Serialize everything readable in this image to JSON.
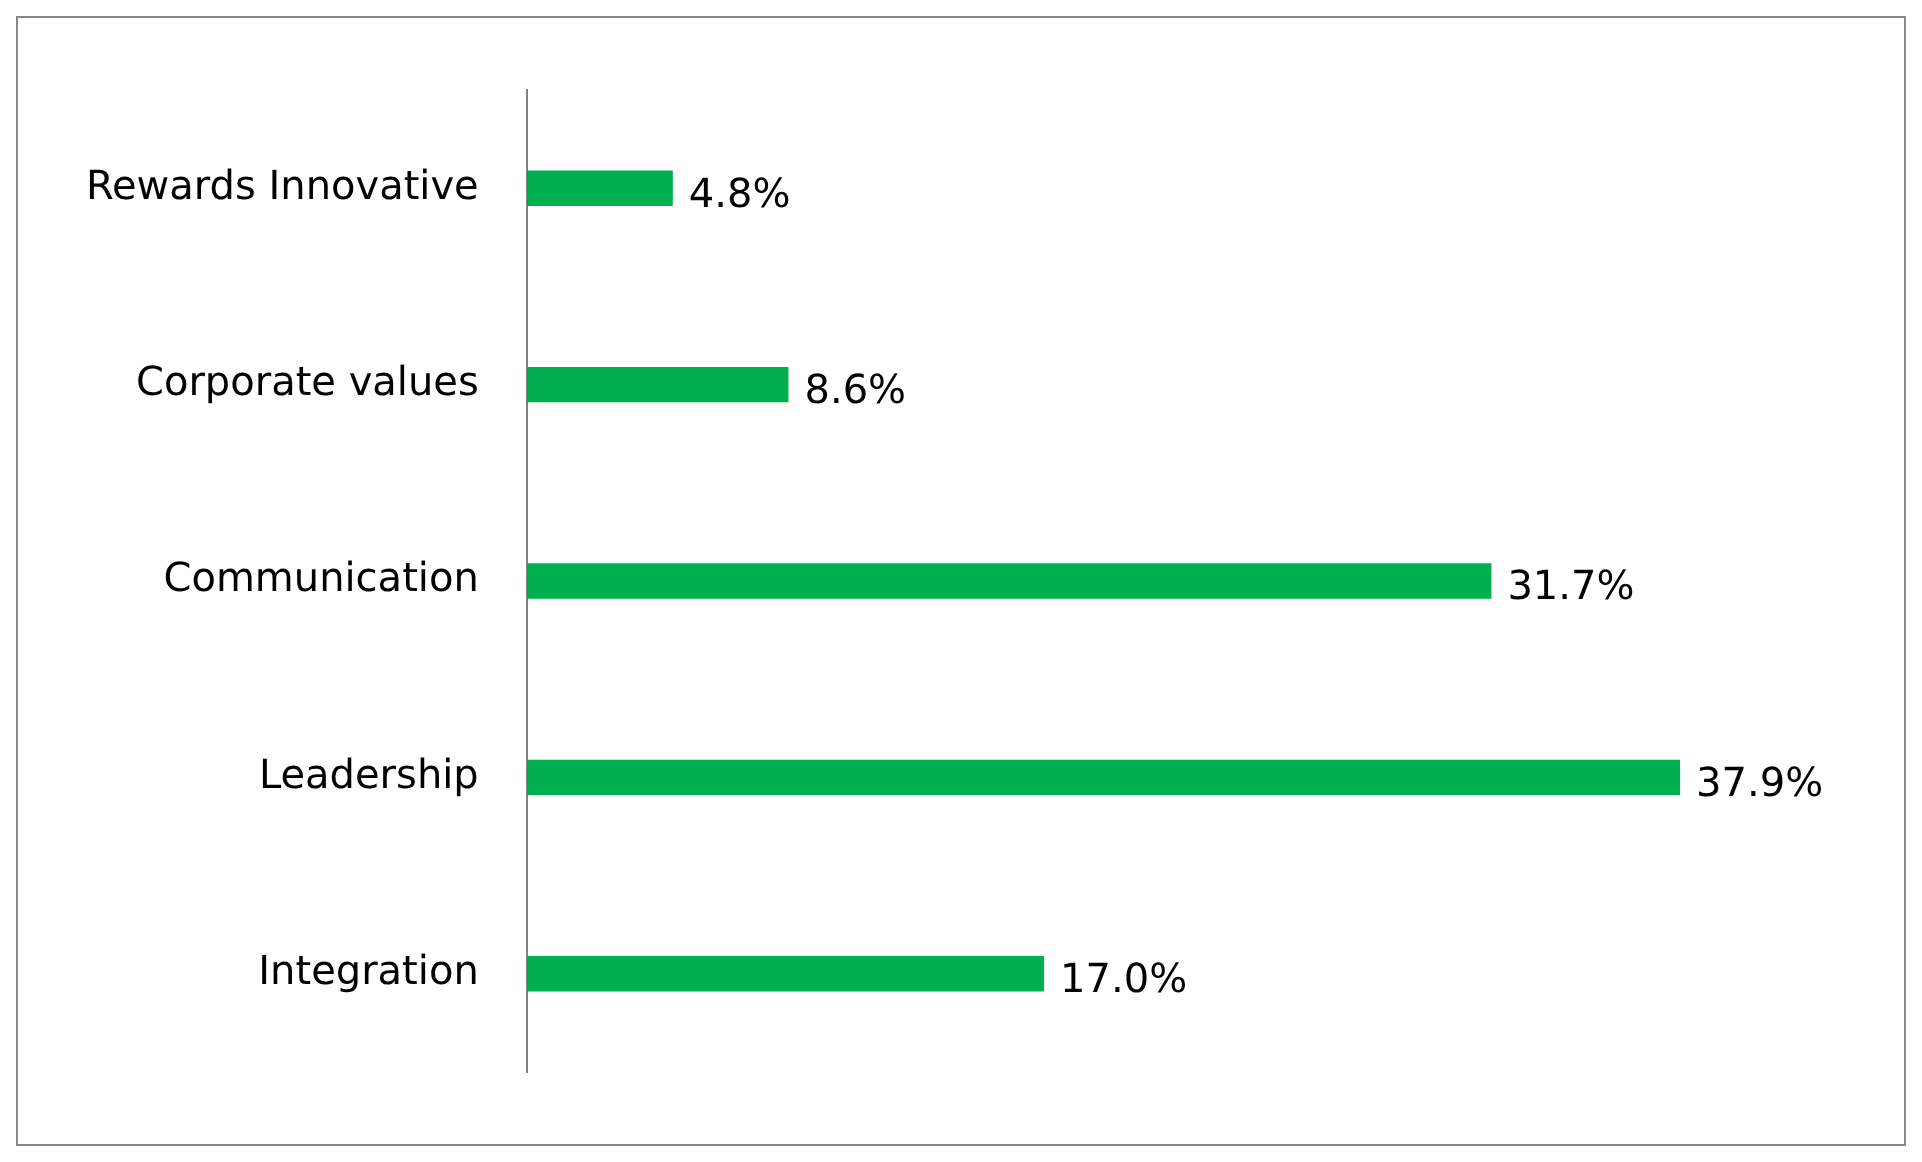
{
  "chart_data": {
    "type": "bar",
    "orientation": "horizontal",
    "categories": [
      "Rewards Innovative",
      "Corporate values",
      "Communication",
      "Leadership",
      "Integration"
    ],
    "values": [
      4.8,
      8.6,
      31.7,
      37.9,
      17.0
    ],
    "color": "#00b050",
    "tick_labels": "y",
    "grid": false,
    "legend": false,
    "value_labels": [
      "4.8%",
      "8.6%",
      "31.7%",
      "37.9%",
      "17.0%"
    ]
  }
}
